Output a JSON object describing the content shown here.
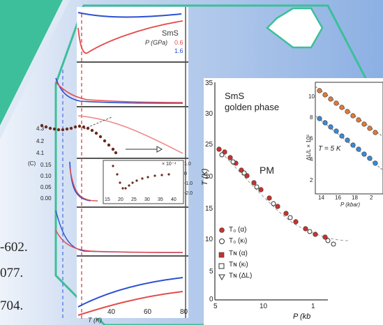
{
  "colors": {
    "background_blue": "#8fb0e0",
    "teal_accent": "#3cbf9a",
    "hexagon_fill": "#ffffff",
    "red_series": "#e44b4b",
    "blue_series": "#2b4fd0",
    "brown_points": "#6b2a1c"
  },
  "left_refs": {
    "ref1": "-602.",
    "ref2": "077.",
    "ref3": "704."
  },
  "left_figure": {
    "sample_label": "SmS",
    "pressure_label": "P (GPa)",
    "pressure_value_red": "0.6",
    "pressure_value_blue": "1.6",
    "inset_scale": "× 10⁻⁴",
    "inset_ticks": [
      "1.0",
      "0",
      "-1.0",
      "-2.0"
    ],
    "inset_xticks": [
      "15",
      "20",
      "25",
      "30",
      "35",
      "40"
    ],
    "yticks_panel3": [
      "4.3",
      "4.2",
      "4.1"
    ],
    "yticks_panel4": [
      "0.15",
      "0.10",
      "0.05",
      "0.00"
    ],
    "panel4_ylabel": "(C)",
    "xticks": [
      "40",
      "60",
      "80"
    ],
    "xlabel": "T (K)"
  },
  "right_figure": {
    "title_line1": "SmS",
    "title_line2": "golden phase",
    "region_label": "PM",
    "ylabel": "T (K)",
    "xlabel": "P (kb",
    "yticks": [
      "35",
      "30",
      "25",
      "20",
      "15",
      "10",
      "5",
      "0"
    ],
    "xticks": [
      "5",
      "10",
      "1"
    ],
    "legend": [
      {
        "symbol": "filled-circle",
        "label": "T₀ (α)"
      },
      {
        "symbol": "open-circle",
        "label": "T₀ (κₗ)"
      },
      {
        "symbol": "filled-square",
        "label": "Tɴ (α)"
      },
      {
        "symbol": "open-square",
        "label": "Tɴ (κₗ)"
      },
      {
        "symbol": "open-triangle",
        "label": "Tɴ (ΔL)"
      }
    ],
    "inset": {
      "ylabel": "ΔL/L × 10³",
      "annotation": "T = 5 K",
      "yticks": [
        "10",
        "8",
        "6",
        "4",
        "2"
      ],
      "xticks": [
        "14",
        "16",
        "18",
        "2"
      ],
      "xlabel": "P (kbar)"
    }
  }
}
